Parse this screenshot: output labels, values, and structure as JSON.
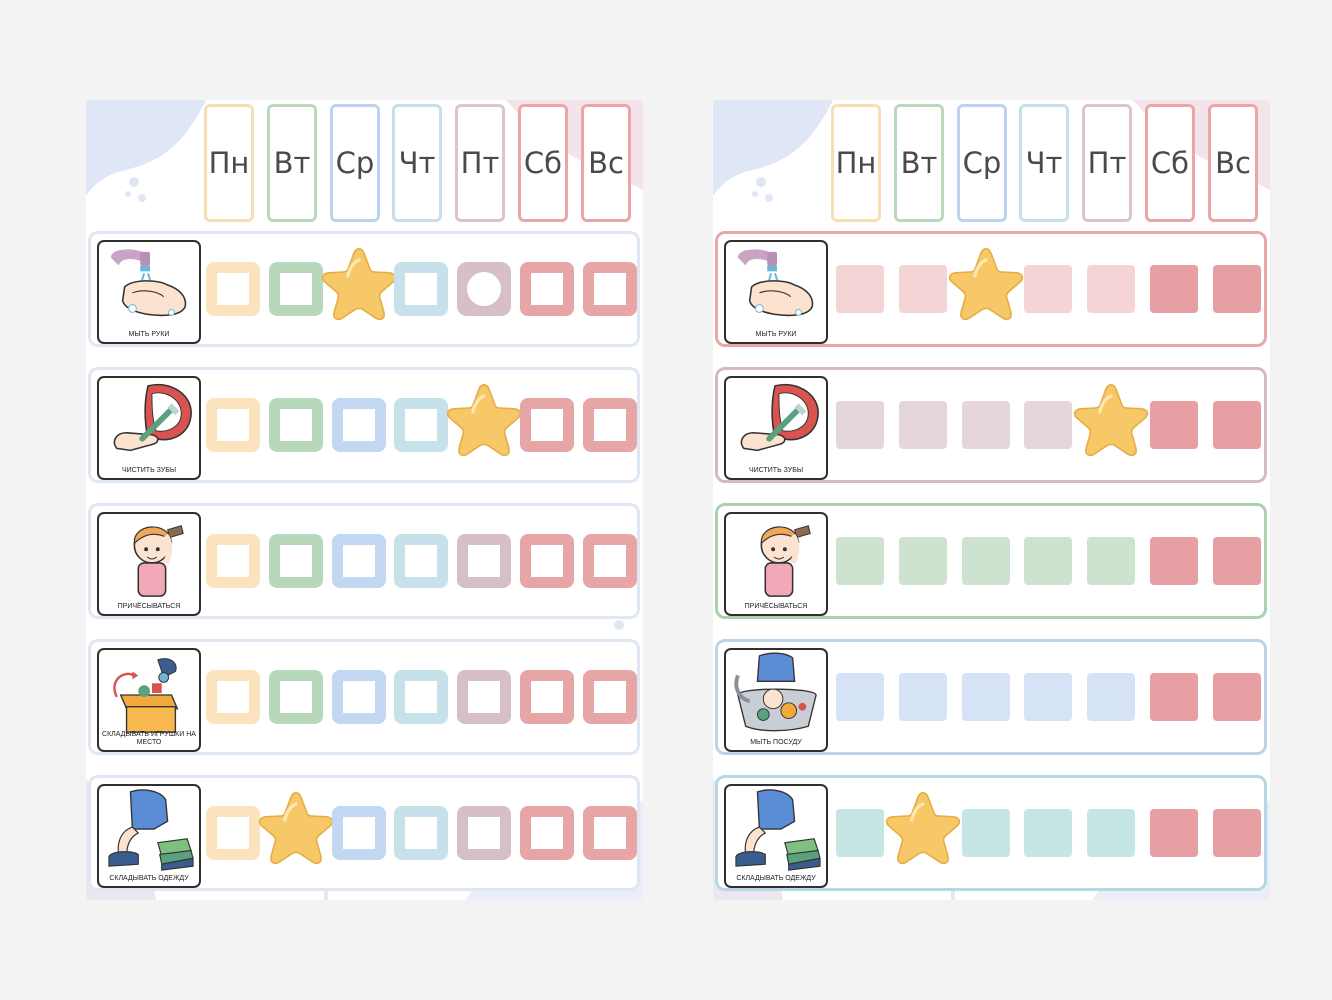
{
  "days": [
    "Пн",
    "Вт",
    "Ср",
    "Чт",
    "Пт",
    "Сб",
    "Вс"
  ],
  "colors": {
    "day_outline": [
      "#f7dfb3",
      "#b9d9bd",
      "#bcd4ef",
      "#c4e0ea",
      "#ddc3cb",
      "#eaa6a6",
      "#eaa6a6"
    ],
    "ring": [
      "#fbe4bd",
      "#b8d8bb",
      "#c2d7f1",
      "#c7e1ea",
      "#d6bfc9",
      "#e8a5a5",
      "#e8a5a5"
    ],
    "star": "#f6c867",
    "accent_bg": "#dfe7f7"
  },
  "tasks": [
    {
      "label": "мыть руки",
      "icon": "washing-hands-icon"
    },
    {
      "label": "чистить зубы",
      "icon": "brushing-teeth-icon"
    },
    {
      "label": "причёсываться",
      "icon": "combing-hair-icon"
    },
    {
      "label": "складывать игрушки на место",
      "icon": "putting-away-toys-icon"
    },
    {
      "label": "мыть посуду",
      "icon": "washing-dishes-icon"
    },
    {
      "label": "складывать одежду",
      "icon": "folding-clothes-icon"
    }
  ],
  "left_chart": {
    "rows": [
      {
        "task": 0,
        "star_day": 2,
        "dot_day": 4
      },
      {
        "task": 1,
        "star_day": 4
      },
      {
        "task": 2
      },
      {
        "task": 3
      },
      {
        "task": 5,
        "star_day": 1
      }
    ]
  },
  "right_chart": {
    "rows": [
      {
        "task": 0,
        "star_day": 2,
        "color": "#f4d4d5",
        "row_border": "#e8a8a8"
      },
      {
        "task": 1,
        "star_day": 4,
        "color": "#e5d6dd",
        "row_border": "#d6b9c2"
      },
      {
        "task": 2,
        "color": "#cde3d0",
        "row_border": "#a9d2ad"
      },
      {
        "task": 4,
        "color": "#d6e2f6",
        "row_border": "#bcd4ea"
      },
      {
        "task": 5,
        "star_day": 1,
        "color": "#c6e6e3",
        "row_border": "#b4d9e4"
      }
    ],
    "weekend_color": "#e6a0a3"
  }
}
